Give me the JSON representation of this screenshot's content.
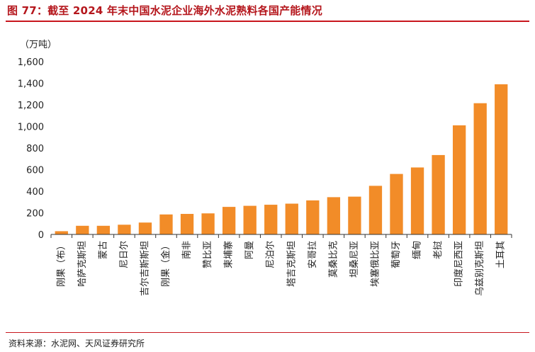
{
  "header": {
    "title": "图 77：截至 2024 年末中国水泥企业海外水泥熟料各国产能情况"
  },
  "unit_label": "（万吨）",
  "source": "资料来源：水泥网、天风证券研究所",
  "colors": {
    "bar": "#F28C28",
    "title": "#B5171D",
    "rule": "#C8161D"
  },
  "chart_data": {
    "type": "bar",
    "title": "图 77：截至 2024 年末中国水泥企业海外水泥熟料各国产能情况",
    "xlabel": "",
    "ylabel": "（万吨）",
    "ylim": [
      0,
      1600
    ],
    "yticks": [
      0,
      200,
      400,
      600,
      800,
      1000,
      1200,
      1400,
      1600
    ],
    "ytick_labels": [
      "0",
      "200",
      "400",
      "600",
      "800",
      "1,000",
      "1,200",
      "1,400",
      "1,600"
    ],
    "grid": false,
    "legend": "none",
    "categories": [
      "刚果（布）",
      "哈萨克斯坦",
      "蒙古",
      "尼日尔",
      "吉尔吉斯斯坦",
      "刚果（金）",
      "南非",
      "赞比亚",
      "柬埔寨",
      "阿曼",
      "尼泊尔",
      "塔吉克斯坦",
      "安哥拉",
      "莫桑比克",
      "坦桑尼亚",
      "埃塞俄比亚",
      "葡萄牙",
      "缅甸",
      "老挝",
      "印度尼西亚",
      "乌兹别克斯坦",
      "土耳其"
    ],
    "values": [
      30,
      80,
      80,
      90,
      110,
      185,
      190,
      195,
      255,
      265,
      275,
      285,
      315,
      345,
      350,
      450,
      560,
      620,
      735,
      1010,
      1215,
      1390
    ]
  }
}
